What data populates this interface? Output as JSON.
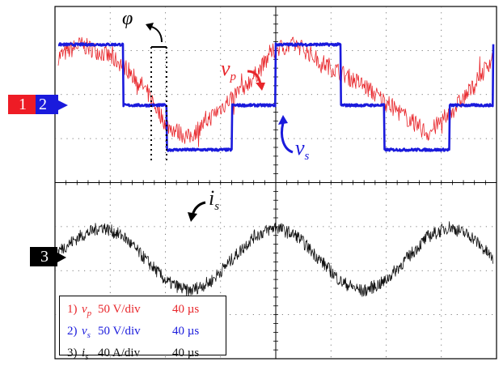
{
  "chart_data": [
    {
      "type": "line",
      "title": "",
      "xlabel": "",
      "ylabel": "",
      "x": [
        0,
        20,
        40,
        60,
        80,
        100,
        120,
        140,
        160,
        180,
        200,
        220,
        240,
        260,
        280,
        300,
        320,
        340,
        360,
        380,
        400
      ],
      "series": [
        {
          "channel": "1",
          "name": "v_p",
          "color": "#e8262b",
          "values": [
            60,
            75,
            65,
            50,
            20,
            -25,
            -40,
            -15,
            10,
            35,
            70,
            75,
            55,
            40,
            25,
            5,
            -15,
            -35,
            -10,
            20,
            60
          ]
        },
        {
          "channel": "2",
          "name": "v_s",
          "color": "#1a1adc",
          "values": [
            75,
            75,
            75,
            0,
            0,
            -55,
            -55,
            -55,
            0,
            0,
            75,
            75,
            75,
            0,
            0,
            -55,
            -55,
            -55,
            0,
            0,
            75
          ]
        }
      ]
    },
    {
      "type": "line",
      "title": "",
      "xlabel": "",
      "ylabel": "",
      "x": [
        0,
        20,
        40,
        60,
        80,
        100,
        120,
        140,
        160,
        180,
        200,
        220,
        240,
        260,
        280,
        300,
        320,
        340,
        360,
        380,
        400
      ],
      "series": [
        {
          "channel": "3",
          "name": "i_s",
          "color": "#111111",
          "values": [
            10,
            28,
            40,
            28,
            0,
            -28,
            -40,
            -28,
            0,
            28,
            40,
            28,
            0,
            -28,
            -40,
            -28,
            0,
            28,
            40,
            28,
            0
          ]
        }
      ]
    }
  ],
  "markers": {
    "ch1": "1",
    "ch2": "2",
    "ch3": "3",
    "ch1_color": "#ee1c25",
    "ch2_color": "#1a1adc",
    "ch3_color": "#000000"
  },
  "annotations": {
    "phi": "φ",
    "vp_main": "v",
    "vp_sub": "p",
    "vs_main": "v",
    "vs_sub": "s",
    "is_main": "i",
    "is_sub": "s"
  },
  "legend": [
    {
      "num": "1)",
      "sym": "v",
      "sub": "p",
      "scale": "50 V/div",
      "time": "40 µs",
      "color": "#e8262b"
    },
    {
      "num": "2)",
      "sym": "v",
      "sub": "s",
      "scale": "50 V/div",
      "time": "40 µs",
      "color": "#1a1adc"
    },
    {
      "num": "3)",
      "sym": "i",
      "sub": "s",
      "scale": "40 A/div",
      "time": "40 µs",
      "color": "#111111"
    }
  ]
}
